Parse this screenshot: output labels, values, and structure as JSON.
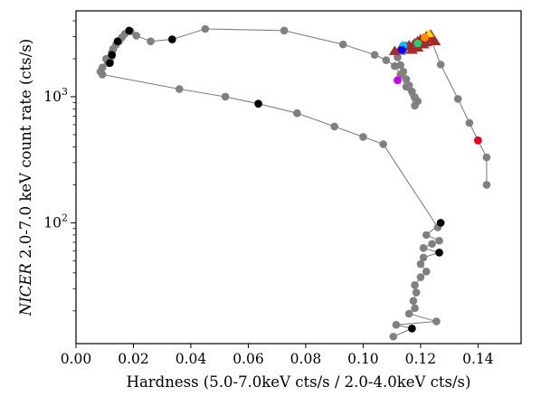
{
  "chart_data": {
    "type": "scatter",
    "xlabel": "Hardness (5.0-7.0keV cts/s / 2.0-4.0keV cts/s)",
    "ylabel_italic": "NICER",
    "ylabel_rest": " 2.0-7.0 keV count rate (cts/s)",
    "xlim": [
      0.0,
      0.155
    ],
    "ylim": [
      11.0,
      4800.0
    ],
    "yscale": "log",
    "x_ticks": [
      {
        "v": 0.0,
        "label": "0.00"
      },
      {
        "v": 0.02,
        "label": "0.02"
      },
      {
        "v": 0.04,
        "label": "0.04"
      },
      {
        "v": 0.06,
        "label": "0.06"
      },
      {
        "v": 0.08,
        "label": "0.08"
      },
      {
        "v": 0.1,
        "label": "0.10"
      },
      {
        "v": 0.12,
        "label": "0.12"
      },
      {
        "v": 0.14,
        "label": "0.14"
      }
    ],
    "y_ticks": [
      {
        "v": 100,
        "base": "10",
        "exp": "2"
      },
      {
        "v": 1000,
        "base": "10",
        "exp": "3"
      }
    ],
    "colors": {
      "line": "#808080",
      "marker": "#808080",
      "black": "#000000",
      "triangle": "#a52a2a"
    },
    "track": [
      [
        0.143,
        200
      ],
      [
        0.143,
        330
      ],
      [
        0.14,
        450
      ],
      [
        0.137,
        620
      ],
      [
        0.133,
        960
      ],
      [
        0.127,
        1800
      ],
      [
        0.123,
        3100
      ],
      [
        0.121,
        2900
      ],
      [
        0.118,
        2650
      ],
      [
        0.116,
        2500
      ],
      [
        0.114,
        2300
      ],
      [
        0.112,
        2050
      ],
      [
        0.113,
        1780
      ],
      [
        0.114,
        1580
      ],
      [
        0.115,
        1380
      ],
      [
        0.116,
        1230
      ],
      [
        0.117,
        1100
      ],
      [
        0.118,
        990
      ],
      [
        0.119,
        920
      ],
      [
        0.118,
        850
      ],
      [
        0.115,
        1200
      ],
      [
        0.113,
        1500
      ],
      [
        0.111,
        1750
      ],
      [
        0.108,
        1950
      ],
      [
        0.104,
        2150
      ],
      [
        0.093,
        2600
      ],
      [
        0.0725,
        3350
      ],
      [
        0.045,
        3450
      ],
      [
        0.0335,
        2850
      ],
      [
        0.026,
        2750
      ],
      [
        0.021,
        3050
      ],
      [
        0.019,
        3300
      ],
      [
        0.017,
        3150
      ],
      [
        0.016,
        2950
      ],
      [
        0.015,
        2750
      ],
      [
        0.014,
        2600
      ],
      [
        0.013,
        2400
      ],
      [
        0.0125,
        2250
      ],
      [
        0.012,
        2050
      ],
      [
        0.0112,
        1850
      ],
      [
        0.0118,
        1900
      ],
      [
        0.0125,
        2100
      ],
      [
        0.0105,
        2000
      ],
      [
        0.0092,
        1700
      ],
      [
        0.0085,
        1580
      ],
      [
        0.0092,
        1500
      ],
      [
        0.036,
        1150
      ],
      [
        0.052,
        1000
      ],
      [
        0.0635,
        880
      ],
      [
        0.077,
        740
      ],
      [
        0.09,
        580
      ],
      [
        0.1,
        480
      ],
      [
        0.107,
        420
      ],
      [
        0.126,
        92
      ],
      [
        0.127,
        100
      ],
      [
        0.122,
        80
      ],
      [
        0.1265,
        72
      ],
      [
        0.124,
        68
      ],
      [
        0.121,
        63
      ],
      [
        0.1265,
        58
      ],
      [
        0.121,
        53
      ],
      [
        0.12,
        47
      ],
      [
        0.122,
        41
      ],
      [
        0.12,
        37
      ],
      [
        0.118,
        32
      ],
      [
        0.1185,
        28
      ],
      [
        0.1175,
        24
      ],
      [
        0.118,
        21
      ],
      [
        0.116,
        19
      ],
      [
        0.1255,
        16.5
      ],
      [
        0.1115,
        15.5
      ],
      [
        0.117,
        14.5
      ],
      [
        0.1105,
        12.5
      ]
    ],
    "black_points": [
      [
        0.0185,
        3350
      ],
      [
        0.0145,
        2750
      ],
      [
        0.0125,
        2150
      ],
      [
        0.0118,
        1850
      ],
      [
        0.0335,
        2850
      ],
      [
        0.0635,
        880
      ],
      [
        0.127,
        100
      ],
      [
        0.1265,
        58
      ],
      [
        0.117,
        14.5
      ]
    ],
    "triangles": [
      [
        0.111,
        2300
      ],
      [
        0.113,
        2400
      ],
      [
        0.115,
        2500
      ],
      [
        0.116,
        2550
      ],
      [
        0.118,
        2650
      ],
      [
        0.119,
        2750
      ],
      [
        0.12,
        2850
      ],
      [
        0.121,
        2900
      ],
      [
        0.122,
        3000
      ],
      [
        0.123,
        3050
      ],
      [
        0.1235,
        3100
      ],
      [
        0.124,
        2900
      ],
      [
        0.125,
        2750
      ],
      [
        0.117,
        2350
      ],
      [
        0.119,
        2450
      ],
      [
        0.121,
        2600
      ],
      [
        0.122,
        2700
      ]
    ],
    "colored_points": [
      {
        "x": 0.123,
        "y": 3150,
        "color": "#ffd700",
        "shape": "triangle"
      },
      {
        "x": 0.1215,
        "y": 2950,
        "color": "#ff8c00",
        "shape": "circle"
      },
      {
        "x": 0.119,
        "y": 2650,
        "color": "#2ecc71",
        "shape": "circle"
      },
      {
        "x": 0.114,
        "y": 2550,
        "color": "#00bfff",
        "shape": "circle"
      },
      {
        "x": 0.1135,
        "y": 2350,
        "color": "#0000ff",
        "shape": "circle"
      },
      {
        "x": 0.112,
        "y": 1350,
        "color": "#cc00ff",
        "shape": "circle"
      },
      {
        "x": 0.14,
        "y": 450,
        "color": "#e8002a",
        "shape": "circle"
      }
    ]
  }
}
